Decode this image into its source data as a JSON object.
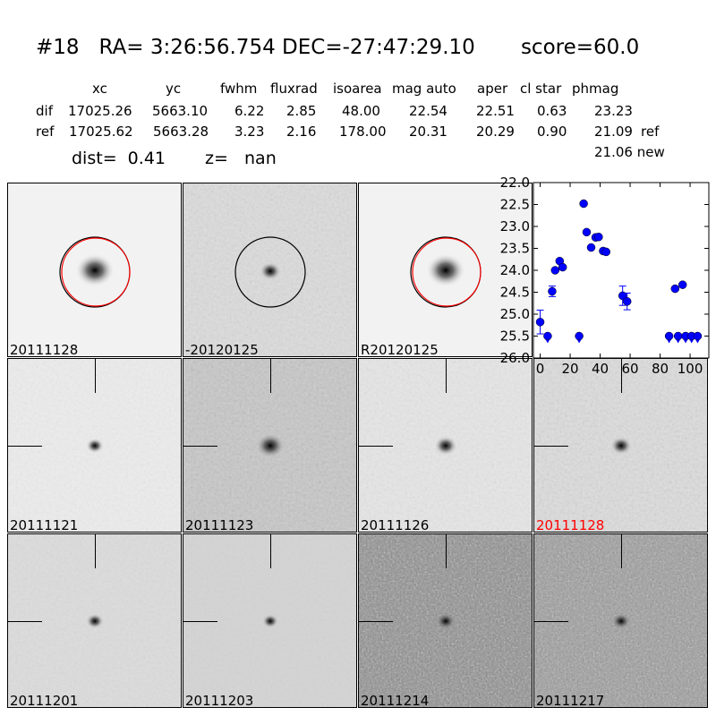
{
  "header": {
    "title": "#18   RA= 3:26:56.754 DEC=-27:47:29.10       score=60.0"
  },
  "table": {
    "columns": [
      "xc",
      "yc",
      "fwhm",
      "fluxrad",
      "isoarea",
      "mag auto",
      "aper",
      "cl star",
      "phmag"
    ],
    "rows": [
      {
        "label": "dif",
        "values": [
          "17025.26",
          "5663.10",
          "6.22",
          "2.85",
          "48.00",
          "22.54",
          "22.51",
          "0.63",
          "23.23"
        ],
        "suffix": ""
      },
      {
        "label": "ref",
        "values": [
          "17025.62",
          "5663.28",
          "3.23",
          "2.16",
          "178.00",
          "20.31",
          "20.29",
          "0.90",
          "21.09"
        ],
        "suffix": "ref"
      }
    ],
    "extra": {
      "value": "21.06",
      "suffix": "new"
    },
    "dist": "dist=  0.41",
    "z": "z=   nan"
  },
  "stamps_top": [
    {
      "label": "20111128",
      "circle": "red"
    },
    {
      "label": "-20120125",
      "circle": "black"
    },
    {
      "label": "R20120125",
      "circle": "red"
    }
  ],
  "stamps": [
    {
      "label": "20111121",
      "highlight": false
    },
    {
      "label": "20111123",
      "highlight": false
    },
    {
      "label": "20111126",
      "highlight": false
    },
    {
      "label": "20111128",
      "highlight": true
    },
    {
      "label": "20111201",
      "highlight": false
    },
    {
      "label": "20111203",
      "highlight": false
    },
    {
      "label": "20111214",
      "highlight": false
    },
    {
      "label": "20111217",
      "highlight": false
    }
  ],
  "colors": {
    "points": "#0000ff",
    "highlight": "#ff0000"
  },
  "chart_data": {
    "type": "scatter",
    "xlim": [
      -4.5,
      112.5
    ],
    "ylim": [
      26.0,
      22.0
    ],
    "y_inverted": true,
    "xticks": [
      "0",
      "20",
      "40",
      "60",
      "80",
      "100"
    ],
    "yticks": [
      "22.0",
      "22.5",
      "23.0",
      "23.5",
      "24.0",
      "24.5",
      "25.0",
      "25.5",
      "26.0"
    ],
    "detections": [
      {
        "x": 0,
        "y": 25.18,
        "err": 0.27
      },
      {
        "x": 8,
        "y": 24.48,
        "err": 0.12
      },
      {
        "x": 10,
        "y": 24.0,
        "err": 0.03
      },
      {
        "x": 13,
        "y": 23.79,
        "err": 0.03
      },
      {
        "x": 15,
        "y": 23.93,
        "err": 0.03
      },
      {
        "x": 29,
        "y": 22.48,
        "err": 0.02
      },
      {
        "x": 31,
        "y": 23.13,
        "err": 0.02
      },
      {
        "x": 34,
        "y": 23.48,
        "err": 0.02
      },
      {
        "x": 37,
        "y": 23.25,
        "err": 0.02
      },
      {
        "x": 39,
        "y": 23.24,
        "err": 0.02
      },
      {
        "x": 42,
        "y": 23.56,
        "err": 0.02
      },
      {
        "x": 44,
        "y": 23.58,
        "err": 0.02
      },
      {
        "x": 55,
        "y": 24.58,
        "err": 0.22
      },
      {
        "x": 58,
        "y": 24.71,
        "err": 0.19
      },
      {
        "x": 90,
        "y": 24.42,
        "err": 0.08
      },
      {
        "x": 95,
        "y": 24.33,
        "err": 0.06
      }
    ],
    "upper_limits": [
      {
        "x": 5,
        "y": 25.5
      },
      {
        "x": 26,
        "y": 25.5
      },
      {
        "x": 86,
        "y": 25.5
      },
      {
        "x": 92,
        "y": 25.5
      },
      {
        "x": 97,
        "y": 25.5
      },
      {
        "x": 101,
        "y": 25.5
      },
      {
        "x": 105,
        "y": 25.5
      }
    ]
  }
}
